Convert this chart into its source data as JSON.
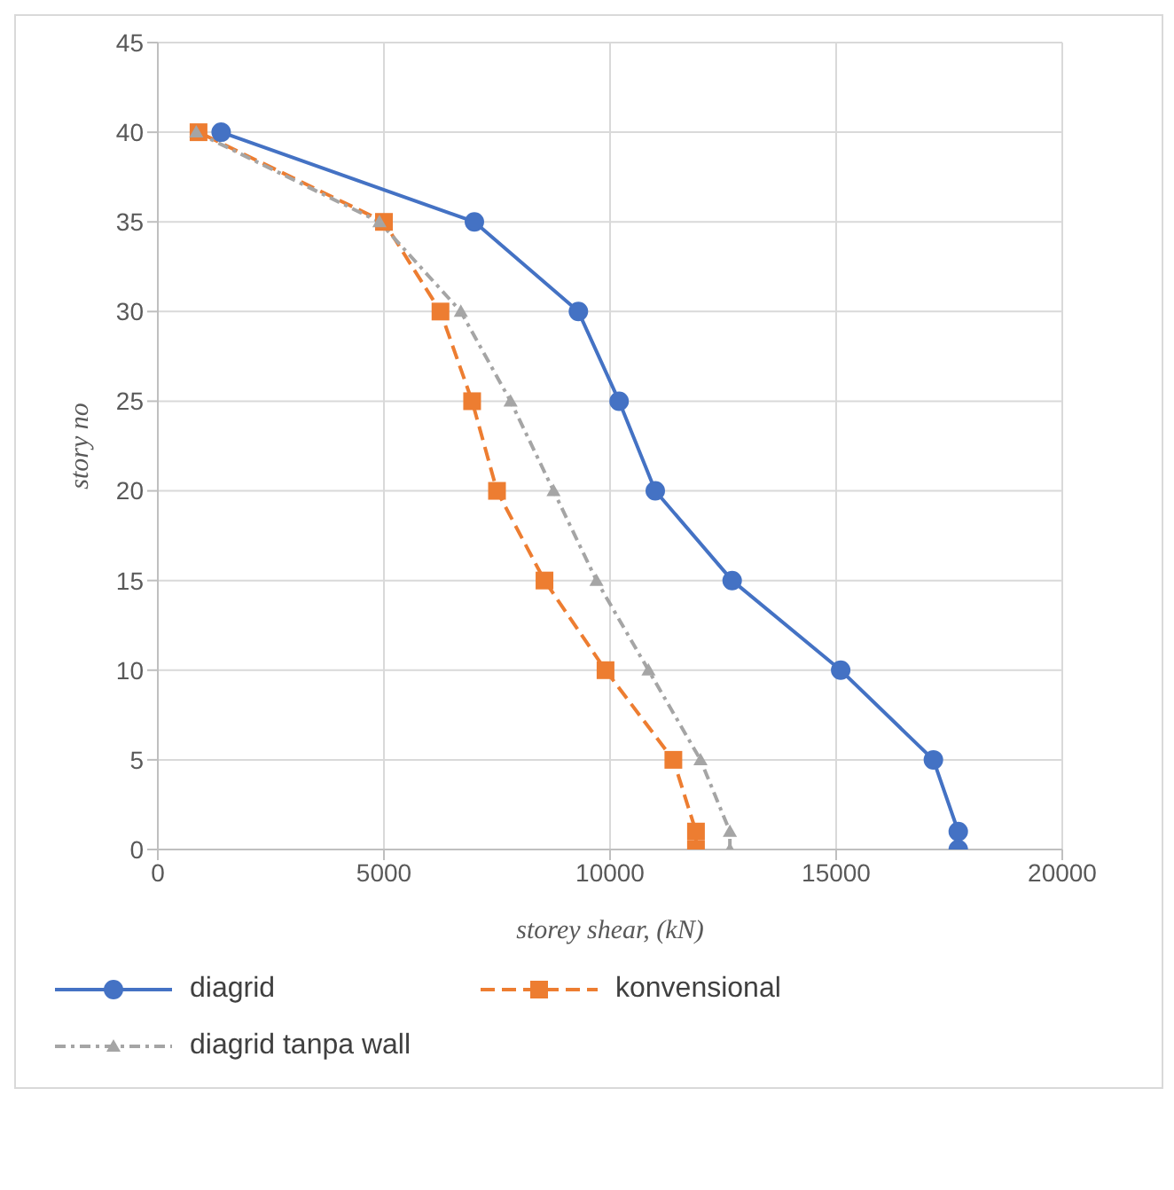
{
  "chart_data": {
    "type": "line",
    "xlabel": "storey shear, (kN)",
    "ylabel": "story no",
    "xlim": [
      0,
      20000
    ],
    "xticks": [
      0,
      5000,
      10000,
      15000,
      20000
    ],
    "ylim": [
      0,
      45
    ],
    "yticks": [
      0,
      5,
      10,
      15,
      20,
      25,
      30,
      35,
      40,
      45
    ],
    "grid": true,
    "legend": "bottom",
    "series": [
      {
        "name": "diagrid",
        "color": "#4472c4",
        "marker": "circle",
        "line_style": "solid",
        "x": [
          17700,
          17700,
          17150,
          15100,
          12700,
          11000,
          10200,
          9300,
          7000,
          1400
        ],
        "values": [
          0,
          1,
          5,
          10,
          15,
          20,
          25,
          30,
          35,
          40
        ]
      },
      {
        "name": "konvensional",
        "color": "#ed7d31",
        "marker": "square",
        "line_style": "dashed",
        "x": [
          11900,
          11900,
          11400,
          9900,
          8550,
          7500,
          6950,
          6250,
          5000,
          900
        ],
        "values": [
          0,
          1,
          5,
          10,
          15,
          20,
          25,
          30,
          35,
          40
        ]
      },
      {
        "name": "diagrid tanpa wall",
        "color": "#a5a5a5",
        "marker": "triangle",
        "line_style": "dotted",
        "x": [
          12650,
          12650,
          12000,
          10850,
          9700,
          8750,
          7800,
          6700,
          4900,
          850
        ],
        "values": [
          0,
          1,
          5,
          10,
          15,
          20,
          25,
          30,
          35,
          40
        ]
      }
    ]
  }
}
